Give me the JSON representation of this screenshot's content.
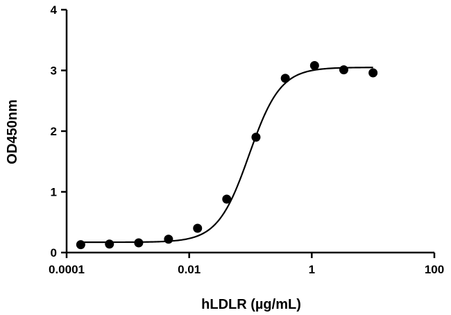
{
  "chart_data": {
    "type": "scatter",
    "xscale": "log",
    "xlabel": "hLDLR (µg/mL)",
    "ylabel": "OD450nm",
    "xlim": [
      0.0001,
      100
    ],
    "ylim": [
      0,
      4
    ],
    "xticks": [
      {
        "value": 0.0001,
        "label": "0.0001"
      },
      {
        "value": 0.01,
        "label": "0.01"
      },
      {
        "value": 1,
        "label": "1"
      },
      {
        "value": 100,
        "label": "100"
      }
    ],
    "yticks": [
      {
        "value": 0,
        "label": "0"
      },
      {
        "value": 1,
        "label": "1"
      },
      {
        "value": 2,
        "label": "2"
      },
      {
        "value": 3,
        "label": "3"
      },
      {
        "value": 4,
        "label": "4"
      }
    ],
    "grid": false,
    "series": [
      {
        "x": [
          0.00017,
          0.0005,
          0.0015,
          0.0046,
          0.0137,
          0.041,
          0.123,
          0.37,
          1.11,
          3.33,
          10.0
        ],
        "y": [
          0.13,
          0.14,
          0.16,
          0.22,
          0.4,
          0.88,
          1.9,
          2.87,
          3.08,
          3.01,
          2.96
        ]
      }
    ],
    "fit": {
      "model": "4PL",
      "bottom": 0.17,
      "top": 3.05,
      "ec50": 0.095,
      "hill": 1.7
    }
  }
}
